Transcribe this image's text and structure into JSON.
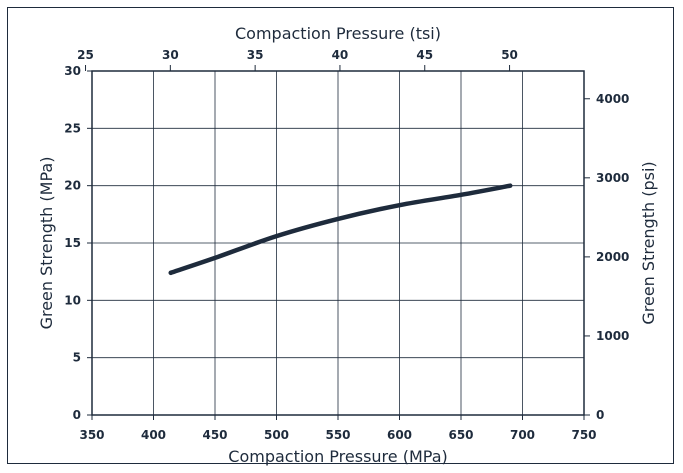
{
  "chart_data": {
    "type": "line",
    "x": [
      414,
      450,
      500,
      550,
      600,
      650,
      690
    ],
    "series": [
      {
        "values": [
          12.4,
          13.7,
          15.6,
          17.1,
          18.3,
          19.2,
          20.0
        ]
      }
    ],
    "xlabel": "Compaction Pressure (MPa)",
    "ylabel": "Green Strength (MPa)",
    "xlim": [
      350,
      750
    ],
    "ylim": [
      0,
      30
    ],
    "xticks": [
      350,
      400,
      450,
      500,
      550,
      600,
      650,
      700,
      750
    ],
    "yticks": [
      0,
      5,
      10,
      15,
      20,
      25,
      30
    ],
    "x2label": "Compaction Pressure (tsi)",
    "x2ticks": [
      25,
      30,
      35,
      40,
      45,
      50
    ],
    "y2label": "Green Strength (psi)",
    "y2ticks": [
      0,
      1000,
      2000,
      3000,
      4000
    ],
    "grid": true,
    "line_color": "#1e2b3c",
    "axis_color": "#1e2b3c"
  }
}
